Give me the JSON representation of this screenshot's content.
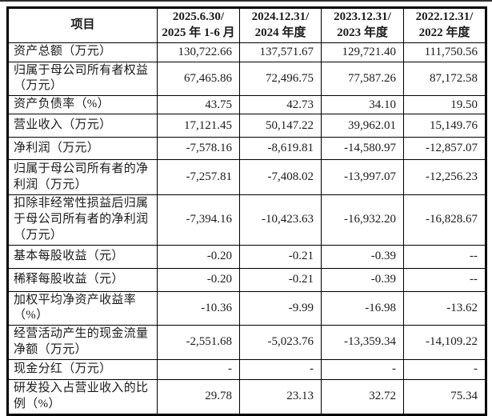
{
  "table": {
    "header": {
      "item_label": "项目",
      "periods": [
        {
          "line1": "2025.6.30/",
          "line2": "2025 年 1-6 月"
        },
        {
          "line1": "2024.12.31/",
          "line2": "2024 年度"
        },
        {
          "line1": "2023.12.31/",
          "line2": "2023 年度"
        },
        {
          "line1": "2022.12.31/",
          "line2": "2022 年度"
        }
      ]
    },
    "rows": [
      {
        "label": "资产总额（万元）",
        "values": [
          "130,722.66",
          "137,571.67",
          "129,721.40",
          "111,750.56"
        ]
      },
      {
        "label": "归属于母公司所有者权益（万元）",
        "values": [
          "67,465.86",
          "72,496.75",
          "77,587.26",
          "87,172.58"
        ]
      },
      {
        "label": "资产负债率（%）",
        "values": [
          "43.75",
          "42.73",
          "34.10",
          "19.50"
        ]
      },
      {
        "label": "营业收入（万元）",
        "values": [
          "17,121.45",
          "50,147.22",
          "39,962.01",
          "15,149.76"
        ]
      },
      {
        "label": "净利润（万元）",
        "values": [
          "-7,578.16",
          "-8,619.81",
          "-14,580.97",
          "-12,857.07"
        ]
      },
      {
        "label": "归属于母公司所有者的净利润（万元）",
        "values": [
          "-7,257.81",
          "-7,408.02",
          "-13,997.07",
          "-12,256.23"
        ]
      },
      {
        "label": "扣除非经常性损益后归属于母公司所有者的净利润（万元）",
        "values": [
          "-7,394.16",
          "-10,423.63",
          "-16,932.20",
          "-16,828.67"
        ]
      },
      {
        "label": "基本每股收益（元）",
        "values": [
          "-0.20",
          "-0.21",
          "-0.39",
          "--"
        ]
      },
      {
        "label": "稀释每股收益（元）",
        "values": [
          "-0.20",
          "-0.21",
          "-0.39",
          "--"
        ]
      },
      {
        "label": "加权平均净资产收益率（%）",
        "values": [
          "-10.36",
          "-9.99",
          "-16.98",
          "-13.62"
        ]
      },
      {
        "label": "经营活动产生的现金流量净额（万元）",
        "values": [
          "-2,551.68",
          "-5,023.76",
          "-13,359.34",
          "-14,109.22"
        ]
      },
      {
        "label": "现金分红（万元）",
        "values": [
          "-",
          "-",
          "-",
          "-"
        ]
      },
      {
        "label": "研发投入占营业收入的比例（%）",
        "values": [
          "29.78",
          "23.13",
          "32.72",
          "75.34"
        ]
      }
    ]
  }
}
